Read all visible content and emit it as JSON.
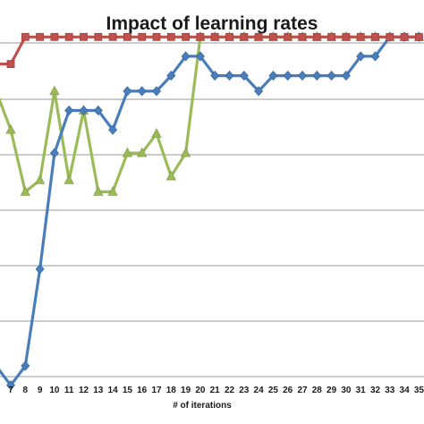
{
  "chart_data": {
    "type": "line",
    "title": "Impact of learning rates",
    "xlabel": "# of iterations",
    "ylabel": "",
    "categories": [
      "7",
      "8",
      "9",
      "10",
      "11",
      "12",
      "13",
      "14",
      "15",
      "16",
      "17",
      "18",
      "19",
      "20",
      "21",
      "22",
      "23",
      "24",
      "25",
      "26",
      "27",
      "28",
      "29",
      "30",
      "31",
      "32",
      "33",
      "34",
      "35"
    ],
    "grid": true,
    "legend": "none",
    "series": [
      {
        "color": "#4a7ebb",
        "marker": "diamond",
        "values": [
          1.0,
          1.5,
          4.0,
          7.0,
          8.1,
          8.1,
          8.1,
          7.6,
          8.6,
          8.6,
          8.6,
          9.0,
          9.5,
          9.5,
          9.0,
          9.0,
          9.0,
          8.6,
          9.0,
          9.0,
          9.0,
          9.0,
          9.0,
          9.0,
          9.5,
          9.5,
          10.0,
          10.0,
          10.0
        ]
      },
      {
        "color": "#9bbb59",
        "marker": "triangle",
        "values": [
          7.6,
          6.0,
          6.3,
          8.6,
          6.3,
          8.1,
          6.0,
          6.0,
          7.0,
          7.0,
          7.5,
          6.4,
          7.0,
          10.0,
          10.0,
          10.0,
          10.0,
          10.0,
          10.0,
          10.0,
          10.0,
          10.0,
          10.0,
          10.0,
          10.0,
          10.0,
          10.0,
          10.0,
          10.0
        ]
      },
      {
        "color": "#c0504d",
        "marker": "square",
        "values": [
          9.3,
          10.0,
          10.0,
          10.0,
          10.0,
          10.0,
          10.0,
          10.0,
          10.0,
          10.0,
          10.0,
          10.0,
          10.0,
          10.0,
          10.0,
          10.0,
          10.0,
          10.0,
          10.0,
          10.0,
          10.0,
          10.0,
          10.0,
          10.0,
          10.0,
          10.0,
          10.0,
          10.0,
          10.0
        ]
      }
    ],
    "leading_partial": {
      "blue": 1.5,
      "green": 8.6,
      "red": 9.3
    },
    "ylim": [
      0.6,
      10.4
    ]
  }
}
